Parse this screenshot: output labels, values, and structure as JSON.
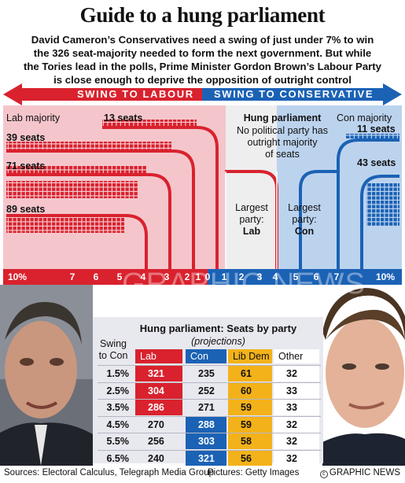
{
  "header": {
    "title": "Guide to a hung parliament",
    "intro_lines": [
      "David Cameron’s Conservatives need a swing of just under 7% to win",
      "the 326 seat-majority needed to form the next government. But while",
      "the Tories lead in the polls, Prime Minister Gordon Brown’s Labour Party",
      "is close enough to deprive the opposition of outright control"
    ]
  },
  "arrows": {
    "left_label": "SWING TO LABOUR",
    "right_label": "SWING TO CONSERVATIVE"
  },
  "swing_chart": {
    "lab_majority_label": "Lab majority",
    "lab_seats": [
      "13 seats",
      "39 seats",
      "71 seats",
      "89 seats"
    ],
    "con_majority_label": "Con majority",
    "con_seats": [
      "11 seats",
      "43 seats"
    ],
    "hung_title": "Hung parliament",
    "hung_text_lines": [
      "No political party has",
      "outright majority",
      "of seats"
    ],
    "largest_lab": {
      "line1": "Largest",
      "line2": "party:",
      "party": "Lab"
    },
    "largest_con": {
      "line1": "Largest",
      "line2": "party:",
      "party": "Con"
    },
    "scale_left": [
      "10%",
      "7",
      "6",
      "5",
      "4",
      "3",
      "2",
      "1",
      "0"
    ],
    "scale_right": [
      "1",
      "2",
      "3",
      "4",
      "5",
      "6",
      "7",
      "10%"
    ]
  },
  "table": {
    "title": "Hung parliament: Seats by party",
    "subtitle": "(projections)",
    "swing_header_lines": [
      "Swing",
      "to Con"
    ],
    "columns": [
      "Lab",
      "Con",
      "Lib Dem",
      "Other"
    ],
    "column_colors": [
      "#d9222e",
      "#1b62b5",
      "#f3b21a",
      "#ffffff"
    ],
    "rows": [
      {
        "swing": "1.5%",
        "values": [
          "321",
          "235",
          "61",
          "32"
        ],
        "lead": 0
      },
      {
        "swing": "2.5%",
        "values": [
          "304",
          "252",
          "60",
          "33"
        ],
        "lead": 0
      },
      {
        "swing": "3.5%",
        "values": [
          "286",
          "271",
          "59",
          "33"
        ],
        "lead": 0
      },
      {
        "swing": "4.5%",
        "values": [
          "270",
          "288",
          "59",
          "32"
        ],
        "lead": 1
      },
      {
        "swing": "5.5%",
        "values": [
          "256",
          "303",
          "58",
          "32"
        ],
        "lead": 1
      },
      {
        "swing": "6.5%",
        "values": [
          "240",
          "321",
          "56",
          "32"
        ],
        "lead": 1
      }
    ]
  },
  "footer": {
    "sources": "Sources: Electoral Calculus, Telegraph Media Group",
    "pictures": "Pictures: Getty Images",
    "credit": "GRAPHIC NEWS"
  },
  "watermark": "GRAPHIC NEWS"
}
